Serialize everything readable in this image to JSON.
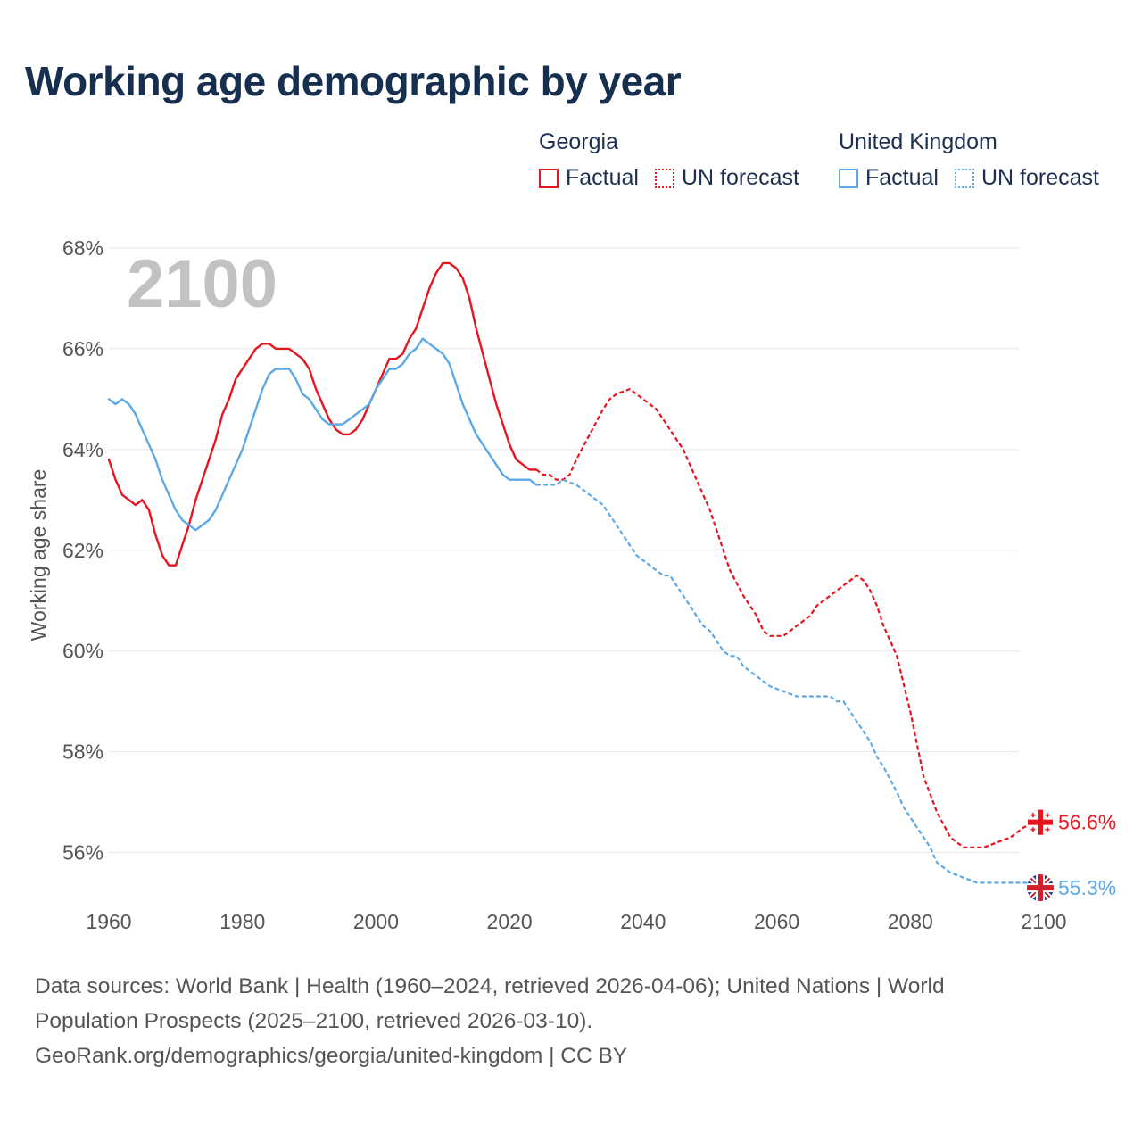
{
  "title": "Working age demographic by year",
  "legend": {
    "groups": [
      {
        "name": "Georgia",
        "color": "#e8141e",
        "factual_label": "Factual",
        "forecast_label": "UN forecast"
      },
      {
        "name": "United Kingdom",
        "color": "#5ca9e8",
        "factual_label": "Factual",
        "forecast_label": "UN forecast"
      }
    ]
  },
  "chart_data": {
    "type": "line",
    "title": "Working age demographic by year",
    "ylabel": "Working age share",
    "xlabel": "",
    "year_watermark": "2100",
    "x_ticks": [
      "1960",
      "1980",
      "2000",
      "2020",
      "2040",
      "2060",
      "2080",
      "2100"
    ],
    "y_ticks": [
      "56%",
      "58%",
      "60%",
      "62%",
      "64%",
      "66%",
      "68%"
    ],
    "xlim": [
      1960,
      2100
    ],
    "ylim": [
      55.0,
      68.0
    ],
    "grid": true,
    "factual_end_year": 2024,
    "series": [
      {
        "name": "Georgia",
        "color": "#e8141e",
        "end_label": "56.6%",
        "flag": "georgia-flag-icon",
        "points": [
          [
            1960,
            63.8
          ],
          [
            1961,
            63.4
          ],
          [
            1962,
            63.1
          ],
          [
            1963,
            63.0
          ],
          [
            1964,
            62.9
          ],
          [
            1965,
            63.0
          ],
          [
            1966,
            62.8
          ],
          [
            1967,
            62.3
          ],
          [
            1968,
            61.9
          ],
          [
            1969,
            61.7
          ],
          [
            1970,
            61.7
          ],
          [
            1971,
            62.1
          ],
          [
            1972,
            62.5
          ],
          [
            1973,
            63.0
          ],
          [
            1974,
            63.4
          ],
          [
            1975,
            63.8
          ],
          [
            1976,
            64.2
          ],
          [
            1977,
            64.7
          ],
          [
            1978,
            65.0
          ],
          [
            1979,
            65.4
          ],
          [
            1980,
            65.6
          ],
          [
            1981,
            65.8
          ],
          [
            1982,
            66.0
          ],
          [
            1983,
            66.1
          ],
          [
            1984,
            66.1
          ],
          [
            1985,
            66.0
          ],
          [
            1986,
            66.0
          ],
          [
            1987,
            66.0
          ],
          [
            1988,
            65.9
          ],
          [
            1989,
            65.8
          ],
          [
            1990,
            65.6
          ],
          [
            1991,
            65.2
          ],
          [
            1992,
            64.9
          ],
          [
            1993,
            64.6
          ],
          [
            1994,
            64.4
          ],
          [
            1995,
            64.3
          ],
          [
            1996,
            64.3
          ],
          [
            1997,
            64.4
          ],
          [
            1998,
            64.6
          ],
          [
            1999,
            64.9
          ],
          [
            2000,
            65.2
          ],
          [
            2001,
            65.5
          ],
          [
            2002,
            65.8
          ],
          [
            2003,
            65.8
          ],
          [
            2004,
            65.9
          ],
          [
            2005,
            66.2
          ],
          [
            2006,
            66.4
          ],
          [
            2007,
            66.8
          ],
          [
            2008,
            67.2
          ],
          [
            2009,
            67.5
          ],
          [
            2010,
            67.7
          ],
          [
            2011,
            67.7
          ],
          [
            2012,
            67.6
          ],
          [
            2013,
            67.4
          ],
          [
            2014,
            67.0
          ],
          [
            2015,
            66.4
          ],
          [
            2016,
            65.9
          ],
          [
            2017,
            65.4
          ],
          [
            2018,
            64.9
          ],
          [
            2019,
            64.5
          ],
          [
            2020,
            64.1
          ],
          [
            2021,
            63.8
          ],
          [
            2022,
            63.7
          ],
          [
            2023,
            63.6
          ],
          [
            2024,
            63.6
          ],
          [
            2025,
            63.5
          ],
          [
            2026,
            63.5
          ],
          [
            2027,
            63.4
          ],
          [
            2028,
            63.4
          ],
          [
            2029,
            63.5
          ],
          [
            2030,
            63.8
          ],
          [
            2032,
            64.3
          ],
          [
            2034,
            64.8
          ],
          [
            2035,
            65.0
          ],
          [
            2036,
            65.1
          ],
          [
            2038,
            65.2
          ],
          [
            2040,
            65.0
          ],
          [
            2042,
            64.8
          ],
          [
            2044,
            64.4
          ],
          [
            2046,
            64.0
          ],
          [
            2048,
            63.4
          ],
          [
            2050,
            62.8
          ],
          [
            2052,
            62.0
          ],
          [
            2053,
            61.6
          ],
          [
            2055,
            61.1
          ],
          [
            2057,
            60.7
          ],
          [
            2058,
            60.4
          ],
          [
            2059,
            60.3
          ],
          [
            2061,
            60.3
          ],
          [
            2063,
            60.5
          ],
          [
            2065,
            60.7
          ],
          [
            2066,
            60.9
          ],
          [
            2068,
            61.1
          ],
          [
            2070,
            61.3
          ],
          [
            2071,
            61.4
          ],
          [
            2072,
            61.5
          ],
          [
            2073,
            61.4
          ],
          [
            2074,
            61.2
          ],
          [
            2075,
            60.9
          ],
          [
            2076,
            60.5
          ],
          [
            2078,
            59.9
          ],
          [
            2080,
            58.8
          ],
          [
            2082,
            57.5
          ],
          [
            2084,
            56.8
          ],
          [
            2086,
            56.3
          ],
          [
            2088,
            56.1
          ],
          [
            2091,
            56.1
          ],
          [
            2093,
            56.2
          ],
          [
            2095,
            56.3
          ],
          [
            2097,
            56.5
          ],
          [
            2099,
            56.6
          ],
          [
            2100,
            56.6
          ]
        ]
      },
      {
        "name": "United Kingdom",
        "color": "#5ca9e8",
        "end_label": "55.3%",
        "flag": "uk-flag-icon",
        "points": [
          [
            1960,
            65.0
          ],
          [
            1961,
            64.9
          ],
          [
            1962,
            65.0
          ],
          [
            1963,
            64.9
          ],
          [
            1964,
            64.7
          ],
          [
            1965,
            64.4
          ],
          [
            1966,
            64.1
          ],
          [
            1967,
            63.8
          ],
          [
            1968,
            63.4
          ],
          [
            1969,
            63.1
          ],
          [
            1970,
            62.8
          ],
          [
            1971,
            62.6
          ],
          [
            1972,
            62.5
          ],
          [
            1973,
            62.4
          ],
          [
            1974,
            62.5
          ],
          [
            1975,
            62.6
          ],
          [
            1976,
            62.8
          ],
          [
            1977,
            63.1
          ],
          [
            1978,
            63.4
          ],
          [
            1979,
            63.7
          ],
          [
            1980,
            64.0
          ],
          [
            1981,
            64.4
          ],
          [
            1982,
            64.8
          ],
          [
            1983,
            65.2
          ],
          [
            1984,
            65.5
          ],
          [
            1985,
            65.6
          ],
          [
            1986,
            65.6
          ],
          [
            1987,
            65.6
          ],
          [
            1988,
            65.4
          ],
          [
            1989,
            65.1
          ],
          [
            1990,
            65.0
          ],
          [
            1991,
            64.8
          ],
          [
            1992,
            64.6
          ],
          [
            1993,
            64.5
          ],
          [
            1994,
            64.5
          ],
          [
            1995,
            64.5
          ],
          [
            1996,
            64.6
          ],
          [
            1997,
            64.7
          ],
          [
            1998,
            64.8
          ],
          [
            1999,
            64.9
          ],
          [
            2000,
            65.2
          ],
          [
            2001,
            65.4
          ],
          [
            2002,
            65.6
          ],
          [
            2003,
            65.6
          ],
          [
            2004,
            65.7
          ],
          [
            2005,
            65.9
          ],
          [
            2006,
            66.0
          ],
          [
            2007,
            66.2
          ],
          [
            2008,
            66.1
          ],
          [
            2009,
            66.0
          ],
          [
            2010,
            65.9
          ],
          [
            2011,
            65.7
          ],
          [
            2012,
            65.3
          ],
          [
            2013,
            64.9
          ],
          [
            2014,
            64.6
          ],
          [
            2015,
            64.3
          ],
          [
            2016,
            64.1
          ],
          [
            2017,
            63.9
          ],
          [
            2018,
            63.7
          ],
          [
            2019,
            63.5
          ],
          [
            2020,
            63.4
          ],
          [
            2021,
            63.4
          ],
          [
            2022,
            63.4
          ],
          [
            2023,
            63.4
          ],
          [
            2024,
            63.3
          ],
          [
            2025,
            63.3
          ],
          [
            2026,
            63.3
          ],
          [
            2027,
            63.3
          ],
          [
            2028,
            63.4
          ],
          [
            2030,
            63.3
          ],
          [
            2032,
            63.1
          ],
          [
            2034,
            62.9
          ],
          [
            2036,
            62.5
          ],
          [
            2038,
            62.1
          ],
          [
            2039,
            61.9
          ],
          [
            2041,
            61.7
          ],
          [
            2043,
            61.5
          ],
          [
            2044,
            61.5
          ],
          [
            2046,
            61.1
          ],
          [
            2048,
            60.7
          ],
          [
            2049,
            60.5
          ],
          [
            2050,
            60.4
          ],
          [
            2052,
            60.0
          ],
          [
            2053,
            59.9
          ],
          [
            2054,
            59.9
          ],
          [
            2055,
            59.7
          ],
          [
            2057,
            59.5
          ],
          [
            2058,
            59.4
          ],
          [
            2059,
            59.3
          ],
          [
            2061,
            59.2
          ],
          [
            2063,
            59.1
          ],
          [
            2068,
            59.1
          ],
          [
            2069,
            59.0
          ],
          [
            2070,
            59.0
          ],
          [
            2072,
            58.6
          ],
          [
            2074,
            58.2
          ],
          [
            2075,
            57.9
          ],
          [
            2076,
            57.7
          ],
          [
            2078,
            57.2
          ],
          [
            2079,
            56.9
          ],
          [
            2081,
            56.5
          ],
          [
            2083,
            56.1
          ],
          [
            2084,
            55.8
          ],
          [
            2086,
            55.6
          ],
          [
            2088,
            55.5
          ],
          [
            2090,
            55.4
          ],
          [
            2098,
            55.4
          ],
          [
            2099,
            55.3
          ],
          [
            2100,
            55.3
          ]
        ]
      }
    ]
  },
  "footer": {
    "line1": "Data sources: World Bank | Health (1960–2024, retrieved 2026-04-06); United Nations | World",
    "line2": "Population Prospects (2025–2100, retrieved 2026-03-10).",
    "line3": "GeoRank.org/demographics/georgia/united-kingdom | CC BY"
  }
}
